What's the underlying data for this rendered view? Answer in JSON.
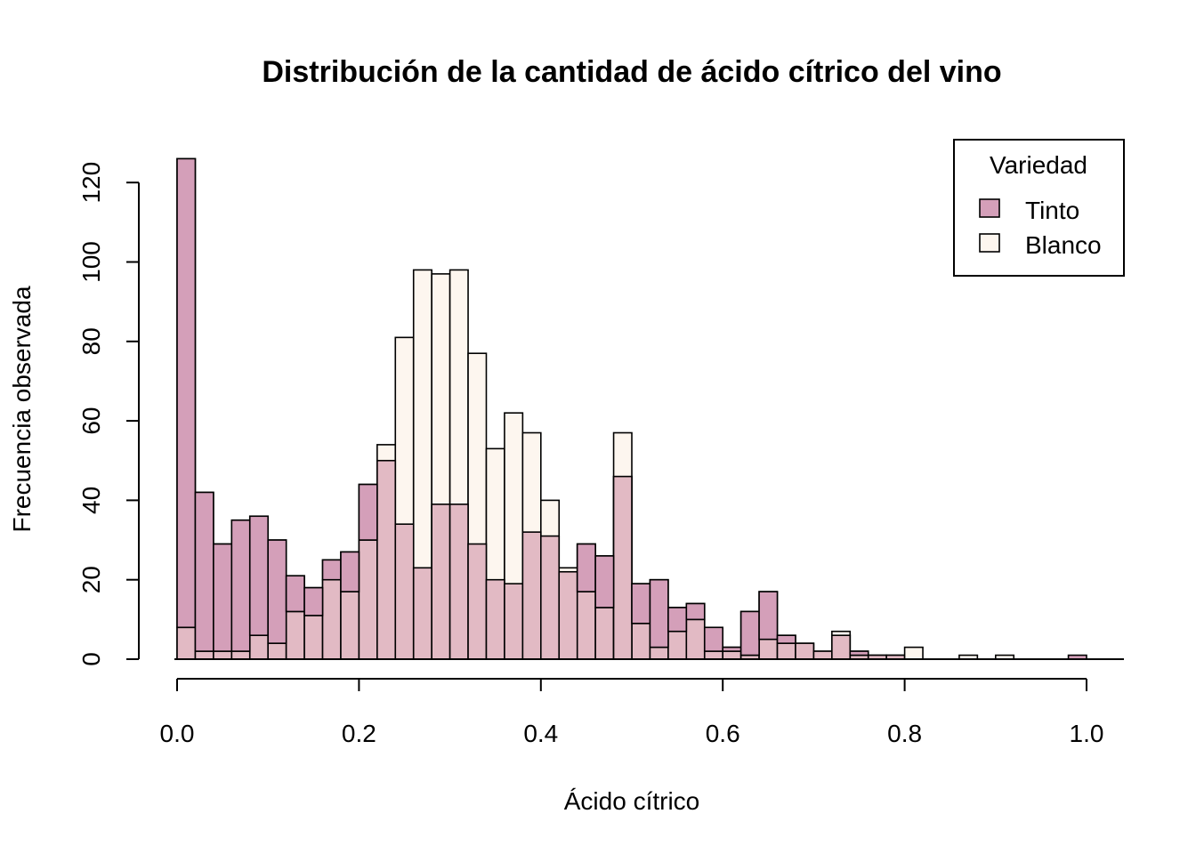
{
  "chart_data": {
    "type": "bar",
    "title": "Distribución de la cantidad de ácido cítrico del vino",
    "xlabel": "Ácido cítrico",
    "ylabel": "Frecuencia observada",
    "xlim": [
      0,
      1.0
    ],
    "ylim": [
      0,
      120
    ],
    "bin_width": 0.02,
    "bin_starts": [
      0.0,
      0.02,
      0.04,
      0.06,
      0.08,
      0.1,
      0.12,
      0.14,
      0.16,
      0.18,
      0.2,
      0.22,
      0.24,
      0.26,
      0.28,
      0.3,
      0.32,
      0.34,
      0.36,
      0.38,
      0.4,
      0.42,
      0.44,
      0.46,
      0.48,
      0.5,
      0.52,
      0.54,
      0.56,
      0.58,
      0.6,
      0.62,
      0.64,
      0.66,
      0.68,
      0.7,
      0.72,
      0.74,
      0.76,
      0.78,
      0.8,
      0.82,
      0.84,
      0.86,
      0.88,
      0.9,
      0.92,
      0.94,
      0.96,
      0.98,
      1.0
    ],
    "x_ticks": [
      "0.0",
      "0.2",
      "0.4",
      "0.6",
      "0.8",
      "1.0"
    ],
    "x_tick_values": [
      0.0,
      0.2,
      0.4,
      0.6,
      0.8,
      1.0
    ],
    "y_ticks": [
      "0",
      "20",
      "40",
      "60",
      "80",
      "100",
      "120"
    ],
    "y_tick_values": [
      0,
      20,
      40,
      60,
      80,
      100,
      120
    ],
    "series": [
      {
        "name": "Tinto",
        "color": "#d49fb9",
        "values": [
          126,
          42,
          29,
          35,
          36,
          30,
          21,
          18,
          25,
          27,
          44,
          50,
          34,
          23,
          39,
          39,
          29,
          20,
          19,
          32,
          31,
          22,
          29,
          26,
          46,
          19,
          20,
          13,
          14,
          8,
          3,
          12,
          17,
          6,
          4,
          2,
          6,
          2,
          1,
          1,
          0,
          0,
          0,
          0,
          0,
          0,
          0,
          0,
          0,
          1
        ]
      },
      {
        "name": "Blanco",
        "color": "#fdf6ef",
        "values": [
          8,
          2,
          2,
          2,
          6,
          4,
          12,
          11,
          20,
          17,
          30,
          54,
          81,
          98,
          97,
          98,
          77,
          53,
          62,
          57,
          40,
          23,
          17,
          13,
          57,
          9,
          3,
          7,
          10,
          2,
          2,
          1,
          5,
          4,
          4,
          2,
          7,
          1,
          1,
          1,
          3,
          0,
          0,
          1,
          0,
          1,
          0,
          0,
          0,
          0
        ]
      }
    ],
    "overlap_color": "#e2bac4",
    "legend": {
      "title": "Variedad",
      "entries": [
        "Tinto",
        "Blanco"
      ],
      "position": "top-right"
    }
  }
}
